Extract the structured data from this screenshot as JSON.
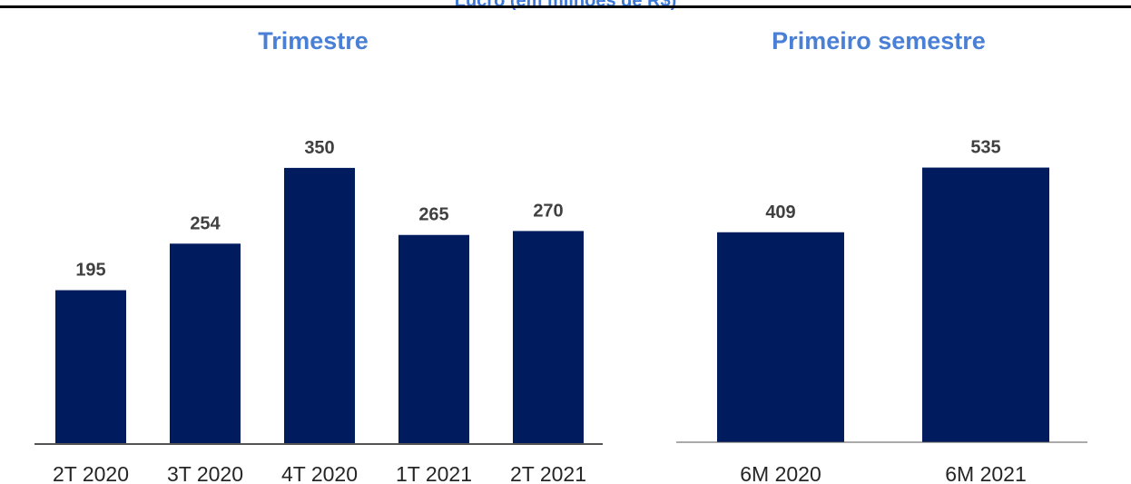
{
  "header": {
    "title": "Lucro (em milhões de R$)"
  },
  "colors": {
    "bar": "#001b5e",
    "title": "#4a7fd6",
    "axis": "#555555"
  },
  "chart_data": [
    {
      "type": "bar",
      "title": "Trimestre",
      "categories": [
        "2T 2020",
        "3T 2020",
        "4T 2020",
        "1T 2021",
        "2T 2021"
      ],
      "values": [
        195,
        254,
        350,
        265,
        270
      ],
      "data_labels": [
        "195",
        "254",
        "350",
        "265",
        "270"
      ],
      "ylim": [
        0,
        450
      ],
      "grid": false,
      "legend": false
    },
    {
      "type": "bar",
      "title": "Primeiro semestre",
      "categories": [
        "6M 2020",
        "6M 2021"
      ],
      "values": [
        409,
        535
      ],
      "data_labels": [
        "409",
        "535"
      ],
      "ylim": [
        0,
        750
      ],
      "grid": false,
      "legend": false
    }
  ]
}
